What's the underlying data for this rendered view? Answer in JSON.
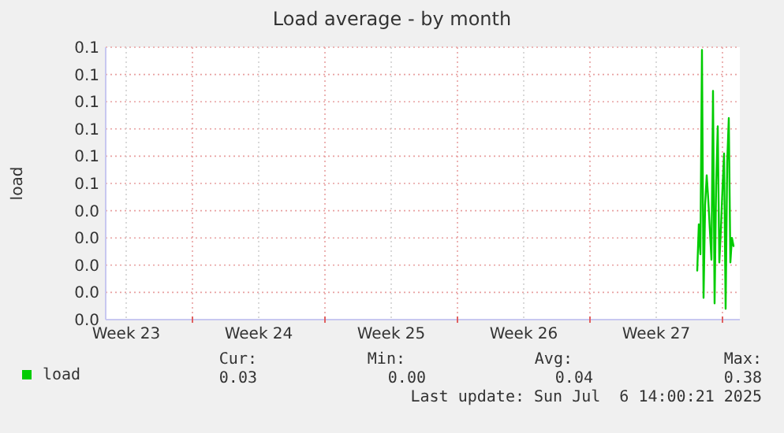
{
  "chart_data": {
    "type": "line",
    "title": "Load average - by month",
    "ylabel": "load",
    "x": [
      "2025-07-05T16:00",
      "2025-07-05T18:00",
      "2025-07-05T20:00",
      "2025-07-05T22:00",
      "2025-07-06T00:00",
      "2025-07-06T02:00",
      "2025-07-06T04:00",
      "2025-07-06T06:00",
      "2025-07-06T08:00",
      "2025-07-06T10:00",
      "2025-07-06T12:00",
      "2025-07-06T14:00",
      "2025-07-06T16:00",
      "2025-07-06T18:00",
      "2025-07-06T20:00",
      "2025-07-06T22:00",
      "2025-07-07T00:00",
      "2025-07-07T02:00",
      "2025-07-07T04:00",
      "2025-07-07T06:00",
      "2025-07-07T08:00",
      "2025-07-07T10:00",
      "2025-07-07T12:00",
      "2025-07-07T14:00"
    ],
    "series": [
      {
        "name": "load",
        "color": "#00cc00",
        "values": [
          0.018,
          0.035,
          0.024,
          0.099,
          0.008,
          0.042,
          0.053,
          0.044,
          0.033,
          0.022,
          0.084,
          0.006,
          0.05,
          0.071,
          0.021,
          0.033,
          0.048,
          0.061,
          0.004,
          0.058,
          0.074,
          0.021,
          0.03,
          0.027
        ]
      }
    ],
    "xlim": [
      "2025-06-04T10:00",
      "2025-07-07T22:00"
    ],
    "xticks": [
      {
        "value": "2025-06-05T12:00",
        "label": "Week 23"
      },
      {
        "value": "2025-06-09",
        "label": null
      },
      {
        "value": "2025-06-12T12:00",
        "label": "Week 24"
      },
      {
        "value": "2025-06-16",
        "label": null
      },
      {
        "value": "2025-06-19T12:00",
        "label": "Week 25"
      },
      {
        "value": "2025-06-23",
        "label": null
      },
      {
        "value": "2025-06-26T12:00",
        "label": "Week 26"
      },
      {
        "value": "2025-06-30",
        "label": null
      },
      {
        "value": "2025-07-03T12:00",
        "label": "Week 27"
      },
      {
        "value": "2025-07-07",
        "label": null
      }
    ],
    "ylim": [
      0,
      0.1
    ],
    "yticks": [
      {
        "value": 0,
        "label": "0.0"
      },
      {
        "value": 0.01,
        "label": "0.0"
      },
      {
        "value": 0.02,
        "label": "0.0"
      },
      {
        "value": 0.03,
        "label": "0.0"
      },
      {
        "value": 0.04,
        "label": "0.0"
      },
      {
        "value": 0.05,
        "label": "0.1"
      },
      {
        "value": 0.06,
        "label": "0.1"
      },
      {
        "value": 0.07,
        "label": "0.1"
      },
      {
        "value": 0.08,
        "label": "0.1"
      },
      {
        "value": 0.09,
        "label": "0.1"
      },
      {
        "value": 0.1,
        "label": "0.1"
      }
    ],
    "grid": true,
    "legend": "bottom",
    "marker": "none",
    "line_style": "solid",
    "annotations": [
      "Cur:",
      "Min:",
      "Avg:",
      "Max:",
      "0.03",
      "0.00",
      "0.04",
      "0.38",
      "Last update: Sun Jul  6 14:00:21 2025"
    ]
  }
}
